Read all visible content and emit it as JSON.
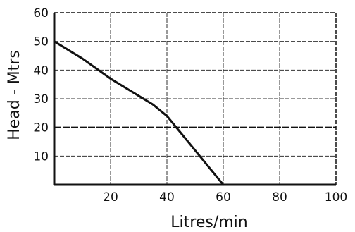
{
  "chart_data": {
    "type": "line",
    "title": "",
    "xlabel": "Litres/min",
    "ylabel": "Head - Mtrs",
    "xlim": [
      0,
      100
    ],
    "ylim": [
      0,
      60
    ],
    "x_ticks": [
      20,
      40,
      60,
      80,
      100
    ],
    "x_tick_labels": [
      "20",
      "40",
      "60",
      "80",
      "100"
    ],
    "y_ticks": [
      10,
      20,
      30,
      40,
      50,
      60
    ],
    "y_tick_labels": [
      "10",
      "20",
      "30",
      "40",
      "50",
      "60"
    ],
    "grid": true,
    "highlight_gridline_y": 20,
    "series": [
      {
        "x": [
          0,
          10,
          20,
          30,
          35,
          40,
          50,
          60
        ],
        "y": [
          50,
          44,
          37,
          31,
          28,
          24,
          12,
          0
        ]
      }
    ],
    "colors": {
      "line": "#111111",
      "grid": "#333333",
      "axis": "#111111"
    }
  }
}
